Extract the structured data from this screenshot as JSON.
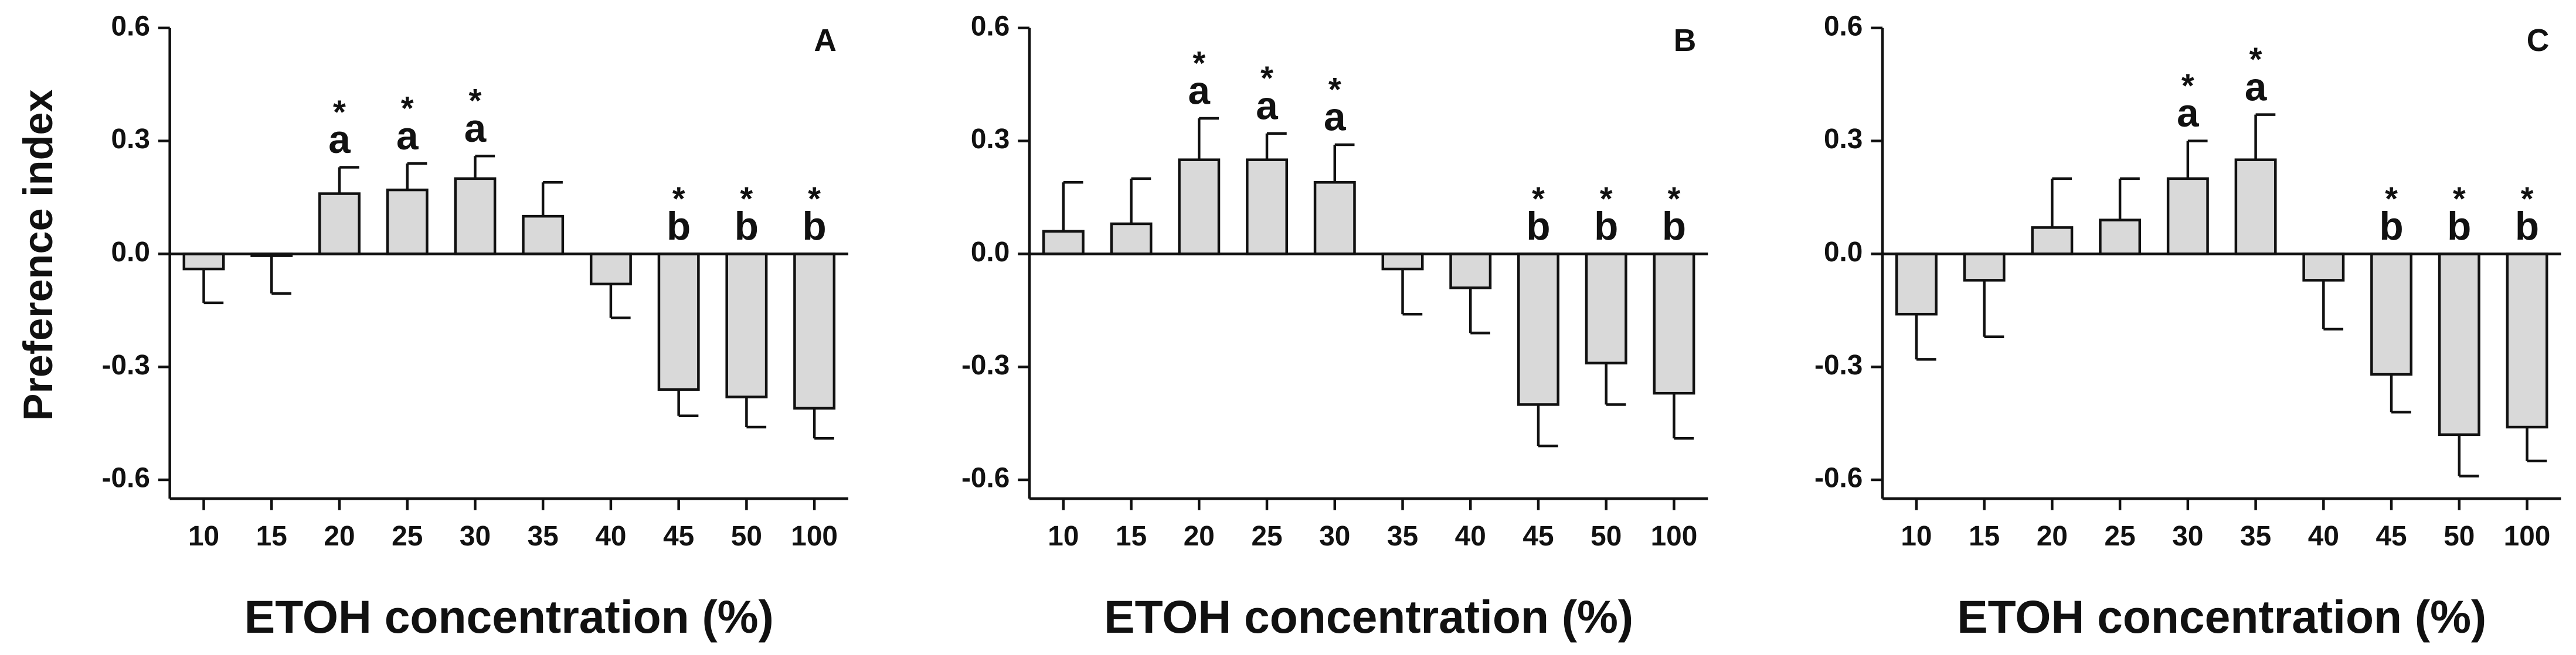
{
  "chart_data": [
    {
      "type": "bar",
      "title": "A",
      "x_label": "ETOH concentration (%)",
      "y_label": "Preference index",
      "color": "#d9d9d9",
      "categories": [
        "10",
        "15",
        "20",
        "25",
        "30",
        "35",
        "40",
        "45",
        "50",
        "100"
      ],
      "values": [
        -0.04,
        -0.005,
        0.16,
        0.17,
        0.2,
        0.1,
        -0.08,
        -0.36,
        -0.38,
        -0.41
      ],
      "errors": [
        0.09,
        0.1,
        0.07,
        0.07,
        0.06,
        0.09,
        0.09,
        0.07,
        0.08,
        0.08
      ],
      "stars": [
        null,
        null,
        "*",
        "*",
        "*",
        null,
        null,
        "*",
        "*",
        "*"
      ],
      "letters": [
        null,
        null,
        "a",
        "a",
        "a",
        null,
        null,
        "b",
        "b",
        "b"
      ],
      "ylim": [
        -0.65,
        0.6
      ],
      "yticks": [
        -0.6,
        -0.3,
        {
          "value": 0,
          "label": "0.0"
        },
        0.3,
        0.6
      ]
    },
    {
      "type": "bar",
      "title": "B",
      "x_label": "ETOH concentration (%)",
      "color": "#d9d9d9",
      "categories": [
        "10",
        "15",
        "20",
        "25",
        "30",
        "35",
        "40",
        "45",
        "50",
        "100"
      ],
      "values": [
        0.06,
        0.08,
        0.25,
        0.25,
        0.19,
        -0.04,
        -0.09,
        -0.4,
        -0.29,
        -0.37
      ],
      "errors": [
        0.13,
        0.12,
        0.11,
        0.07,
        0.1,
        0.12,
        0.12,
        0.11,
        0.11,
        0.12
      ],
      "stars": [
        null,
        null,
        "*",
        "*",
        "*",
        null,
        null,
        "*",
        "*",
        "*"
      ],
      "letters": [
        null,
        null,
        "a",
        "a",
        "a",
        null,
        null,
        "b",
        "b",
        "b"
      ],
      "ylim": [
        -0.65,
        0.6
      ],
      "yticks": [
        -0.6,
        -0.3,
        {
          "value": 0,
          "label": "0.0"
        },
        0.3,
        0.6
      ]
    },
    {
      "type": "bar",
      "title": "C",
      "x_label": "ETOH concentration (%)",
      "color": "#d9d9d9",
      "categories": [
        "10",
        "15",
        "20",
        "25",
        "30",
        "35",
        "40",
        "45",
        "50",
        "100"
      ],
      "values": [
        -0.16,
        -0.07,
        0.07,
        0.09,
        0.2,
        0.25,
        -0.07,
        -0.32,
        -0.48,
        -0.46
      ],
      "errors": [
        0.12,
        0.15,
        0.13,
        0.11,
        0.1,
        0.12,
        0.13,
        0.1,
        0.11,
        0.09
      ],
      "stars": [
        null,
        null,
        null,
        null,
        "*",
        "*",
        null,
        "*",
        "*",
        "*"
      ],
      "letters": [
        null,
        null,
        null,
        null,
        "a",
        "a",
        null,
        "b",
        "b",
        "b"
      ],
      "ylim": [
        -0.65,
        0.6
      ],
      "yticks": [
        -0.6,
        -0.3,
        {
          "value": 0,
          "label": "0.0"
        },
        0.3,
        0.6
      ]
    }
  ]
}
